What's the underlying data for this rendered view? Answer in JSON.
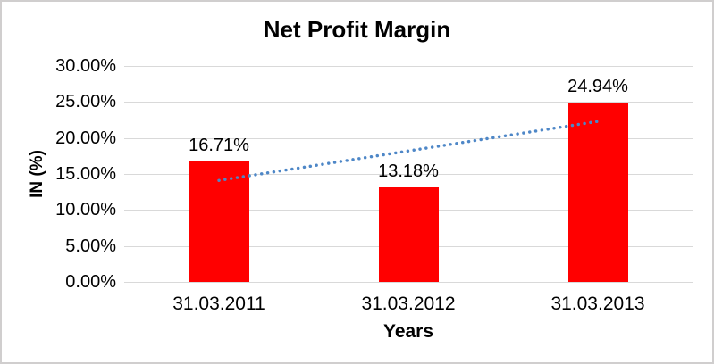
{
  "chart_data": {
    "type": "bar",
    "title": "Net Profit Margin",
    "xlabel": "Years",
    "ylabel": "IN (%)",
    "categories": [
      "31.03.2011",
      "31.03.2012",
      "31.03.2013"
    ],
    "values": [
      16.71,
      13.18,
      24.94
    ],
    "data_labels": [
      "16.71%",
      "13.18%",
      "24.94%"
    ],
    "series_name": "Net Profit Margin",
    "ylim": [
      0,
      30
    ],
    "y_ticks": {
      "values": [
        0,
        5,
        10,
        15,
        20,
        25,
        30
      ],
      "labels": [
        "0.00%",
        "5.00%",
        "10.00%",
        "15.00%",
        "20.00%",
        "25.00%",
        "30.00%"
      ]
    },
    "grid": true,
    "legend_position": "none",
    "bar_color": "#ff0000",
    "gridline_color": "#d9d9d9",
    "text_color": "#000000",
    "trendline": {
      "type": "linear",
      "style": "dotted",
      "color": "#4e87c7",
      "start_value": 14.1,
      "end_value": 22.3
    }
  }
}
